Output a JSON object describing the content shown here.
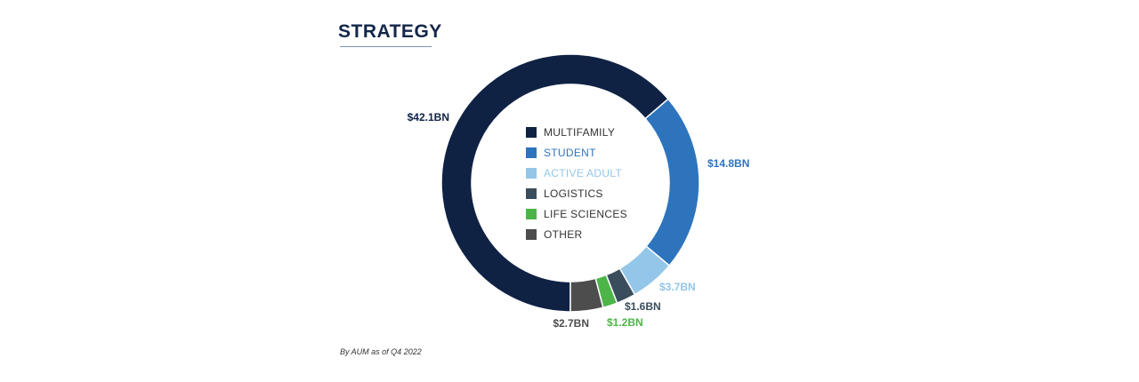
{
  "header": {
    "title": "STRATEGY"
  },
  "footnote": "By AUM as of Q4 2022",
  "chart_data": {
    "type": "pie",
    "style": "donut",
    "title": "STRATEGY",
    "legend_position": "center",
    "series": [
      {
        "name": "MULTIFAMILY",
        "value": 42.1,
        "value_label": "$42.1BN",
        "color": "#0f2244",
        "label_color": "#0f2244"
      },
      {
        "name": "STUDENT",
        "value": 14.8,
        "value_label": "$14.8BN",
        "color": "#2e74bd",
        "label_color": "#2e74bd"
      },
      {
        "name": "ACTIVE ADULT",
        "value": 3.7,
        "value_label": "$3.7BN",
        "color": "#93c6e9",
        "label_color": "#93c6e9"
      },
      {
        "name": "LOGISTICS",
        "value": 1.6,
        "value_label": "$1.6BN",
        "color": "#3a4d5c",
        "label_color": "#3a4d5c"
      },
      {
        "name": "LIFE SCIENCES",
        "value": 1.2,
        "value_label": "$1.2BN",
        "color": "#4db548",
        "label_color": "#4db548"
      },
      {
        "name": "OTHER",
        "value": 2.7,
        "value_label": "$2.7BN",
        "color": "#4d4d4d",
        "label_color": "#4d4d4d"
      }
    ]
  },
  "legend_text_colors": {
    "MULTIFAMILY": "#333333",
    "STUDENT": "#2e74bd",
    "ACTIVE ADULT": "#93c6e9",
    "LOGISTICS": "#333333",
    "LIFE SCIENCES": "#333333",
    "OTHER": "#333333"
  }
}
